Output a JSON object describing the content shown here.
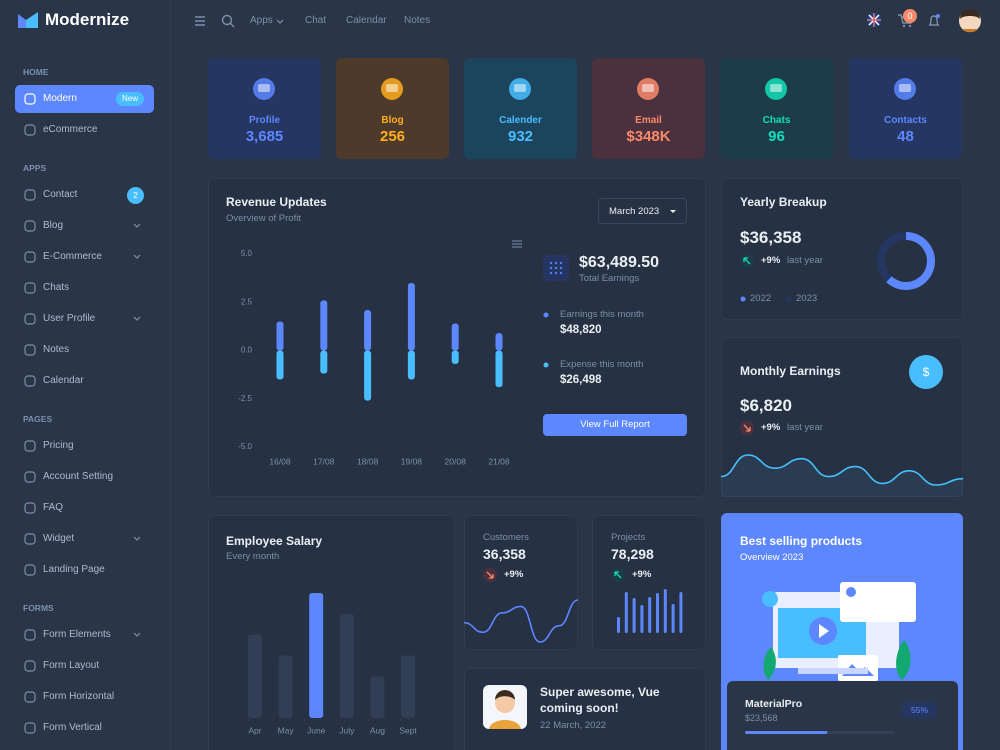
{
  "header": {
    "brand": "Modernize",
    "nav": [
      "Apps",
      "Chat",
      "Calendar",
      "Notes"
    ],
    "cart_badge": 0
  },
  "sidebar": {
    "sections": [
      {
        "title": "HOME",
        "items": [
          {
            "label": "Modern",
            "badge": "New",
            "active": true
          },
          {
            "label": "eCommerce"
          }
        ]
      },
      {
        "title": "APPS",
        "items": [
          {
            "label": "Contact",
            "badge": 2
          },
          {
            "label": "Blog",
            "submenu": true
          },
          {
            "label": "E-Commerce",
            "submenu": true
          },
          {
            "label": "Chats"
          },
          {
            "label": "User Profile",
            "submenu": true
          },
          {
            "label": "Notes"
          },
          {
            "label": "Calendar"
          }
        ]
      },
      {
        "title": "PAGES",
        "items": [
          {
            "label": "Pricing"
          },
          {
            "label": "Account Setting"
          },
          {
            "label": "FAQ"
          },
          {
            "label": "Widget",
            "submenu": true
          },
          {
            "label": "Landing Page"
          }
        ]
      },
      {
        "title": "FORMS",
        "items": [
          {
            "label": "Form Elements",
            "submenu": true
          },
          {
            "label": "Form Layout"
          },
          {
            "label": "Form Horizontal"
          },
          {
            "label": "Form Vertical"
          }
        ]
      }
    ]
  },
  "stat_cards": [
    {
      "label": "Profile",
      "value": "3,685",
      "color": "#5d87ff",
      "bg": "#253662"
    },
    {
      "label": "Blog",
      "value": "256",
      "color": "#ffae1f",
      "bg": "#4d3a2a"
    },
    {
      "label": "Calender",
      "value": "932",
      "color": "#49beff",
      "bg": "#1c455d"
    },
    {
      "label": "Email",
      "value": "$348K",
      "color": "#fa896b",
      "bg": "#4b313d"
    },
    {
      "label": "Chats",
      "value": "96",
      "color": "#13deb9",
      "bg": "#1b3c48"
    },
    {
      "label": "Contacts",
      "value": "48",
      "color": "#5d87ff",
      "bg": "#253662"
    }
  ],
  "revenue": {
    "title": "Revenue Updates",
    "subtitle": "Overview of Profit",
    "period": "March 2023",
    "chart_data": {
      "type": "bar",
      "categories": [
        "16/08",
        "17/08",
        "18/08",
        "19/08",
        "20/08",
        "21/08"
      ],
      "series": [
        {
          "name": "Earnings this month",
          "color": "#5d87ff",
          "values": [
            1.5,
            2.6,
            2.1,
            3.5,
            1.4,
            0.9
          ]
        },
        {
          "name": "Expense this month",
          "color": "#49beff",
          "values": [
            -1.5,
            -1.2,
            -2.6,
            -1.5,
            -0.7,
            -1.9
          ]
        }
      ],
      "ylim": [
        -5,
        5
      ],
      "yticks": [
        {
          "value": 5,
          "label": "5.0"
        },
        {
          "value": 2.5,
          "label": "2.5"
        },
        {
          "value": 0,
          "label": "0.0"
        },
        {
          "value": -2.5,
          "label": "-2.5"
        },
        {
          "value": -5,
          "label": "-5.0"
        }
      ],
      "grid": false
    },
    "total": "$63,489.50",
    "total_label": "Total Earnings",
    "series_totals": [
      "$48,820",
      "$26,498"
    ],
    "button": "View Full Report"
  },
  "yearly": {
    "title": "Yearly Breakup",
    "value": "$36,358",
    "change": "+9%",
    "change_label": "last year",
    "chart_data": {
      "type": "pie",
      "categories": [
        "2022",
        "2023"
      ],
      "values": [
        62,
        38
      ],
      "colors": [
        "#5d87ff",
        "#253662"
      ]
    }
  },
  "monthly": {
    "title": "Monthly Earnings",
    "icon": "$",
    "value": "$6,820",
    "change": "+9%",
    "change_label": "last year",
    "chart_data": {
      "type": "area",
      "values": [
        25,
        66,
        41,
        59,
        25,
        44,
        12,
        36,
        9,
        21
      ],
      "color": "#49beff"
    }
  },
  "salary": {
    "title": "Employee Salary",
    "subtitle": "Every month",
    "chart_data": {
      "type": "bar",
      "categories": [
        "Apr",
        "May",
        "June",
        "July",
        "Aug",
        "Sept"
      ],
      "values": [
        20,
        15,
        30,
        25,
        10,
        15
      ],
      "color": "#5d87ff",
      "muted_color": "#313e56",
      "highlight": 2
    }
  },
  "customers": {
    "label": "Customers",
    "value": "36,358",
    "change": "+9%",
    "chart_data": {
      "type": "line",
      "values": [
        30,
        24,
        36,
        40,
        18,
        28,
        44
      ],
      "color": "#5d87ff"
    }
  },
  "projects": {
    "label": "Projects",
    "value": "78,298",
    "change": "+9%",
    "chart_data": {
      "type": "bar",
      "values": [
        16,
        41,
        35,
        28,
        36,
        40,
        44,
        29,
        41
      ],
      "color": "#5d87ff"
    }
  },
  "event": {
    "title": "Super awesome, Vue coming soon!",
    "date": "22 March, 2022"
  },
  "best_selling": {
    "title": "Best selling products",
    "subtitle": "Overview 2023",
    "product": {
      "name": "MaterialPro",
      "price": "$23,568",
      "progress_label": "55%",
      "progress": 55
    }
  }
}
